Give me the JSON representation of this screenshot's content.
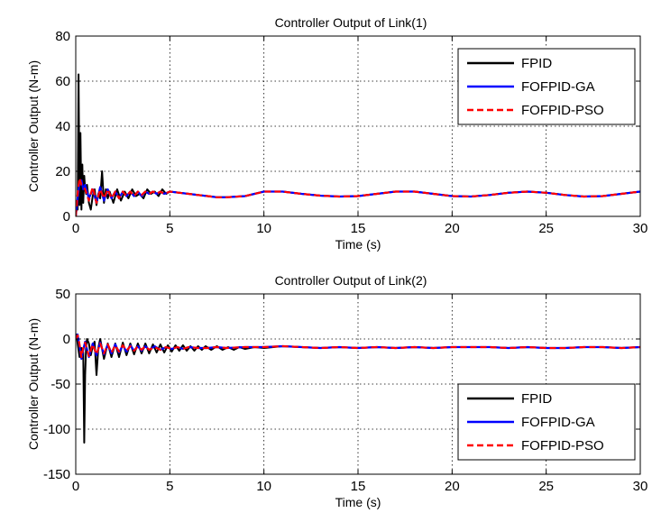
{
  "chart_data": [
    {
      "type": "line",
      "title": "Controller Output of Link(1)",
      "xlabel": "Time (s)",
      "ylabel": "Controller Output (N-m)",
      "xlim": [
        0,
        30
      ],
      "ylim": [
        0,
        80
      ],
      "xticks": [
        "0",
        "5",
        "10",
        "15",
        "20",
        "25",
        "30"
      ],
      "yticks": [
        "0",
        "20",
        "40",
        "60",
        "80"
      ],
      "grid": true,
      "legend_position": "top-right",
      "series": [
        {
          "name": "FPID",
          "color": "#000000",
          "dash": "solid",
          "x": [
            0,
            0.05,
            0.1,
            0.15,
            0.2,
            0.25,
            0.3,
            0.35,
            0.4,
            0.45,
            0.5,
            0.55,
            0.6,
            0.7,
            0.8,
            0.9,
            1.0,
            1.1,
            1.2,
            1.3,
            1.4,
            1.5,
            1.6,
            1.7,
            1.8,
            2.0,
            2.2,
            2.4,
            2.6,
            2.8,
            3.0,
            3.2,
            3.4,
            3.6,
            3.8,
            4.0,
            4.2,
            4.4,
            4.6,
            4.8,
            5.0,
            5.5,
            6.0,
            6.5,
            7.0,
            7.5,
            8.0,
            9.0,
            10.0,
            11.0,
            12.0,
            13.0,
            14.0,
            15.0,
            16.0,
            17.0,
            18.0,
            19.0,
            20.0,
            21.0,
            22.0,
            23.0,
            24.0,
            25.0,
            26.0,
            27.0,
            28.0,
            29.0,
            30.0
          ],
          "y": [
            0,
            4,
            3,
            63,
            5,
            37,
            3,
            23,
            6,
            18,
            12,
            10,
            14,
            6,
            3,
            9,
            12,
            5,
            10,
            8,
            20,
            6,
            12,
            8,
            11,
            6,
            12,
            7,
            11,
            8,
            12,
            9,
            10,
            8,
            12,
            10,
            11,
            9,
            12,
            10,
            11,
            10.5,
            10,
            9.5,
            9,
            8.5,
            8.5,
            9,
            11,
            11,
            10,
            9.2,
            8.8,
            9,
            10,
            11,
            11,
            10,
            9,
            8.8,
            9.5,
            10.5,
            11,
            10.5,
            9.5,
            8.8,
            9,
            10,
            11
          ]
        },
        {
          "name": "FOFPID-GA",
          "color": "#0000ff",
          "dash": "solid",
          "x": [
            0,
            0.1,
            0.2,
            0.3,
            0.4,
            0.5,
            0.7,
            0.9,
            1.1,
            1.3,
            1.5,
            1.7,
            1.9,
            2.1,
            2.3,
            2.5,
            2.7,
            2.9,
            3.1,
            3.3,
            3.5,
            3.7,
            3.9,
            4.1,
            4.3,
            4.5,
            4.7,
            5.0,
            5.5,
            6.0,
            6.5,
            7.0,
            7.5,
            8.0,
            9.0,
            10.0,
            11.0,
            12.0,
            13.0,
            14.0,
            15.0,
            16.0,
            17.0,
            18.0,
            19.0,
            20.0,
            21.0,
            22.0,
            23.0,
            24.0,
            25.0,
            26.0,
            27.0,
            28.0,
            29.0,
            30.0
          ],
          "y": [
            0,
            8,
            15,
            16,
            12,
            14,
            8,
            12,
            6,
            13,
            7,
            12,
            8,
            11,
            8,
            11,
            9,
            11,
            9,
            11,
            9,
            11,
            10,
            11,
            10,
            11,
            10,
            11,
            10.5,
            10,
            9.5,
            9,
            8.5,
            8.5,
            9,
            11,
            11,
            10,
            9.2,
            8.8,
            9,
            10,
            11,
            11,
            10,
            9,
            8.8,
            9.5,
            10.5,
            11,
            10.5,
            9.5,
            8.8,
            9,
            10,
            11
          ]
        },
        {
          "name": "FOFPID-PSO",
          "color": "#ff0000",
          "dash": "dashed",
          "x": [
            0,
            0.1,
            0.2,
            0.3,
            0.4,
            0.5,
            0.7,
            0.9,
            1.1,
            1.3,
            1.5,
            1.7,
            1.9,
            2.1,
            2.3,
            2.5,
            2.7,
            2.9,
            3.1,
            3.3,
            3.5,
            3.7,
            3.9,
            4.1,
            4.3,
            4.5,
            4.7,
            5.0,
            5.5,
            6.0,
            6.5,
            7.0,
            7.5,
            8.0,
            9.0,
            10.0,
            11.0,
            12.0,
            13.0,
            14.0,
            15.0,
            16.0,
            17.0,
            18.0,
            19.0,
            20.0,
            21.0,
            22.0,
            23.0,
            24.0,
            25.0,
            26.0,
            27.0,
            28.0,
            29.0,
            30.0
          ],
          "y": [
            0,
            10,
            17,
            14,
            13,
            12,
            7,
            13,
            6,
            12,
            8,
            12,
            8,
            11,
            8,
            11,
            9,
            11,
            9,
            11,
            9.5,
            11,
            10,
            11,
            10,
            11,
            10,
            11,
            10.5,
            10,
            9.5,
            9,
            8.5,
            8.5,
            9,
            11,
            11,
            10,
            9.2,
            8.8,
            9,
            10,
            11,
            11,
            10,
            9,
            8.8,
            9.5,
            10.5,
            11,
            10.5,
            9.5,
            8.8,
            9,
            10,
            11
          ]
        }
      ]
    },
    {
      "type": "line",
      "title": "Controller Output of Link(2)",
      "xlabel": "Time (s)",
      "ylabel": "Controller Output (N-m)",
      "xlim": [
        0,
        30
      ],
      "ylim": [
        -150,
        50
      ],
      "xticks": [
        "0",
        "5",
        "10",
        "15",
        "20",
        "25",
        "30"
      ],
      "yticks": [
        "-150",
        "-100",
        "-50",
        "0",
        "50"
      ],
      "grid": true,
      "legend_position": "bottom-right",
      "series": [
        {
          "name": "FPID",
          "color": "#000000",
          "dash": "solid",
          "x": [
            0,
            0.05,
            0.1,
            0.2,
            0.3,
            0.4,
            0.45,
            0.5,
            0.55,
            0.6,
            0.7,
            0.8,
            0.9,
            1.0,
            1.1,
            1.2,
            1.3,
            1.5,
            1.7,
            1.9,
            2.1,
            2.3,
            2.5,
            2.7,
            2.9,
            3.1,
            3.3,
            3.5,
            3.7,
            3.9,
            4.1,
            4.3,
            4.5,
            4.7,
            4.9,
            5.1,
            5.3,
            5.5,
            5.7,
            5.9,
            6.1,
            6.3,
            6.5,
            6.7,
            6.9,
            7.2,
            7.5,
            7.8,
            8.1,
            8.4,
            8.7,
            9.0,
            9.5,
            10.0,
            11.0,
            12.0,
            13.0,
            14.0,
            15.0,
            16.0,
            17.0,
            18.0,
            19.0,
            20.0,
            21.0,
            22.0,
            23.0,
            24.0,
            25.0,
            26.0,
            27.0,
            28.0,
            29.0,
            30.0
          ],
          "y": [
            0,
            5,
            -5,
            -20,
            -10,
            -15,
            -115,
            -40,
            -8,
            0,
            -5,
            -18,
            -8,
            -3,
            -40,
            -10,
            0,
            -22,
            -5,
            -20,
            -5,
            -20,
            -4,
            -18,
            -5,
            -17,
            -5,
            -16,
            -5,
            -16,
            -6,
            -15,
            -6,
            -15,
            -7,
            -14,
            -7,
            -13,
            -7,
            -13,
            -8,
            -13,
            -8,
            -12,
            -8,
            -12,
            -8,
            -12,
            -9,
            -12,
            -9,
            -11,
            -9,
            -10,
            -8,
            -9,
            -10,
            -9,
            -10,
            -9,
            -10,
            -9,
            -10,
            -9,
            -9,
            -9,
            -10,
            -9,
            -10,
            -10,
            -9,
            -9,
            -10,
            -9
          ]
        },
        {
          "name": "FOFPID-GA",
          "color": "#0000ff",
          "dash": "solid",
          "x": [
            0,
            0.1,
            0.2,
            0.3,
            0.4,
            0.5,
            0.7,
            0.9,
            1.1,
            1.3,
            1.5,
            1.7,
            1.9,
            2.1,
            2.3,
            2.5,
            2.7,
            2.9,
            3.1,
            3.3,
            3.5,
            3.7,
            3.9,
            4.2,
            4.5,
            4.8,
            5.1,
            5.4,
            5.7,
            6.0,
            6.5,
            7.0,
            7.5,
            8.0,
            9.0,
            10.0,
            11.0,
            12.0,
            13.0,
            14.0,
            15.0,
            16.0,
            17.0,
            18.0,
            19.0,
            20.0,
            21.0,
            22.0,
            23.0,
            24.0,
            25.0,
            26.0,
            27.0,
            28.0,
            29.0,
            30.0
          ],
          "y": [
            0,
            5,
            -8,
            -22,
            -12,
            -3,
            -20,
            -5,
            -18,
            -4,
            -17,
            -6,
            -16,
            -6,
            -15,
            -7,
            -14,
            -7,
            -13,
            -8,
            -13,
            -8,
            -12,
            -8,
            -12,
            -9,
            -11,
            -9,
            -11,
            -9,
            -10,
            -10,
            -9,
            -10,
            -9,
            -9,
            -8,
            -9,
            -10,
            -9,
            -10,
            -9,
            -10,
            -9,
            -10,
            -9,
            -9,
            -9,
            -10,
            -9,
            -10,
            -10,
            -9,
            -9,
            -10,
            -9
          ]
        },
        {
          "name": "FOFPID-PSO",
          "color": "#ff0000",
          "dash": "dashed",
          "x": [
            0,
            0.1,
            0.2,
            0.3,
            0.4,
            0.5,
            0.7,
            0.9,
            1.1,
            1.3,
            1.5,
            1.7,
            1.9,
            2.1,
            2.3,
            2.5,
            2.7,
            2.9,
            3.1,
            3.3,
            3.5,
            3.7,
            3.9,
            4.2,
            4.5,
            4.8,
            5.1,
            5.4,
            5.7,
            6.0,
            6.5,
            7.0,
            7.5,
            8.0,
            9.0,
            10.0,
            11.0,
            12.0,
            13.0,
            14.0,
            15.0,
            16.0,
            17.0,
            18.0,
            19.0,
            20.0,
            21.0,
            22.0,
            23.0,
            24.0,
            25.0,
            26.0,
            27.0,
            28.0,
            29.0,
            30.0
          ],
          "y": [
            0,
            4,
            -6,
            -20,
            -10,
            -4,
            -19,
            -6,
            -17,
            -5,
            -16,
            -6,
            -15,
            -7,
            -14,
            -7,
            -13,
            -8,
            -13,
            -8,
            -12,
            -8,
            -12,
            -9,
            -12,
            -9,
            -11,
            -9,
            -11,
            -9,
            -10,
            -10,
            -9,
            -10,
            -9,
            -9,
            -8,
            -9,
            -10,
            -9,
            -10,
            -9,
            -10,
            -9,
            -10,
            -9,
            -9,
            -9,
            -10,
            -9,
            -10,
            -10,
            -9,
            -9,
            -10,
            -9
          ]
        }
      ]
    }
  ]
}
